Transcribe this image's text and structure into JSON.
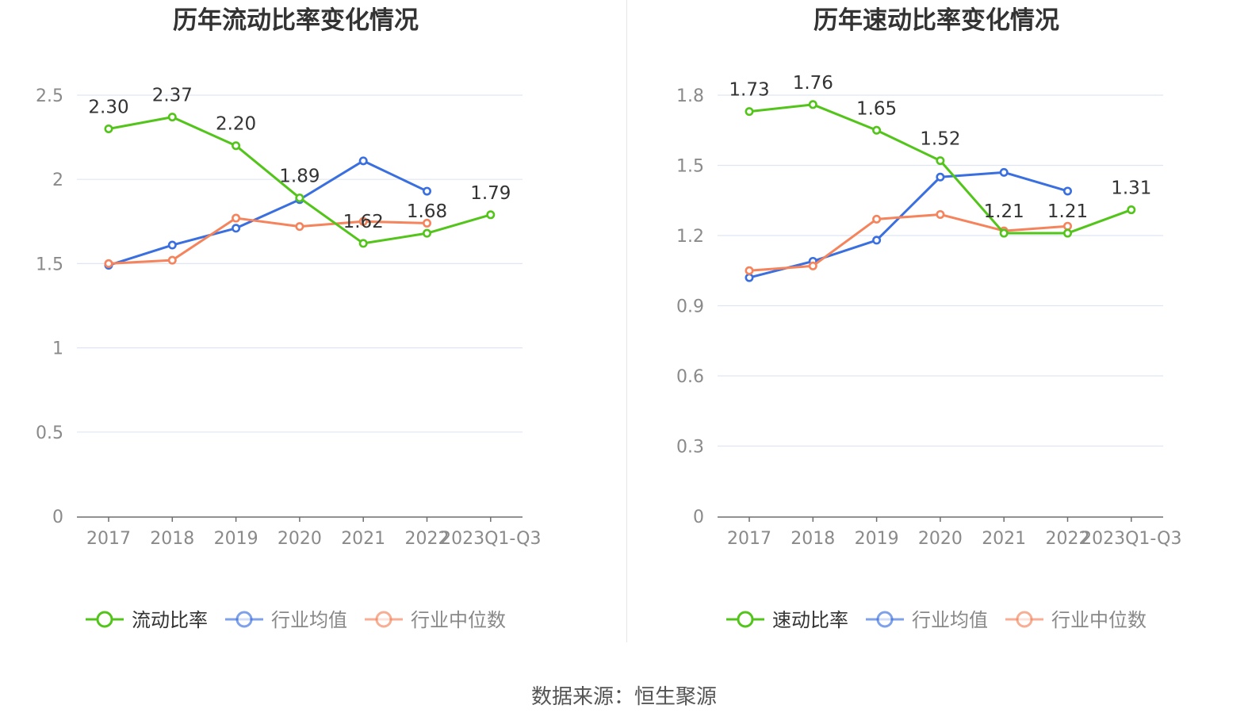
{
  "source": "数据来源：恒生聚源",
  "colors": {
    "main": "#52c41a",
    "avg": "#3a6fe0",
    "median": "#f5835c",
    "grid": "#dfe5f2",
    "axis": "#8a8a8a",
    "label": "#333333"
  },
  "chart_data": [
    {
      "type": "line",
      "title": "历年流动比率变化情况",
      "categories": [
        "2017",
        "2018",
        "2019",
        "2020",
        "2021",
        "2022",
        "2023Q1-Q3"
      ],
      "ylim": [
        0,
        2.5
      ],
      "yticks": [
        "0",
        "0.5",
        "1",
        "1.5",
        "2",
        "2.5"
      ],
      "legend_position": "bottom",
      "grid": true,
      "series": [
        {
          "name": "流动比率",
          "key": "main",
          "values": [
            2.3,
            2.37,
            2.2,
            1.89,
            1.62,
            1.68,
            1.79
          ],
          "labels": [
            "2.30",
            "2.37",
            "2.20",
            "1.89",
            "1.62",
            "1.68",
            "1.79"
          ]
        },
        {
          "name": "行业均值",
          "key": "avg",
          "values": [
            1.49,
            1.61,
            1.71,
            1.88,
            2.11,
            1.93,
            null
          ]
        },
        {
          "name": "行业中位数",
          "key": "median",
          "values": [
            1.5,
            1.52,
            1.77,
            1.72,
            1.75,
            1.74,
            null
          ]
        }
      ]
    },
    {
      "type": "line",
      "title": "历年速动比率变化情况",
      "categories": [
        "2017",
        "2018",
        "2019",
        "2020",
        "2021",
        "2022",
        "2023Q1-Q3"
      ],
      "ylim": [
        0,
        1.8
      ],
      "yticks": [
        "0",
        "0.3",
        "0.6",
        "0.9",
        "1.2",
        "1.5",
        "1.8"
      ],
      "legend_position": "bottom",
      "grid": true,
      "series": [
        {
          "name": "速动比率",
          "key": "main",
          "values": [
            1.73,
            1.76,
            1.65,
            1.52,
            1.21,
            1.21,
            1.31
          ],
          "labels": [
            "1.73",
            "1.76",
            "1.65",
            "1.52",
            "1.21",
            "1.21",
            "1.31"
          ]
        },
        {
          "name": "行业均值",
          "key": "avg",
          "values": [
            1.02,
            1.09,
            1.18,
            1.45,
            1.47,
            1.39,
            null
          ]
        },
        {
          "name": "行业中位数",
          "key": "median",
          "values": [
            1.05,
            1.07,
            1.27,
            1.29,
            1.22,
            1.24,
            null
          ]
        }
      ]
    }
  ]
}
